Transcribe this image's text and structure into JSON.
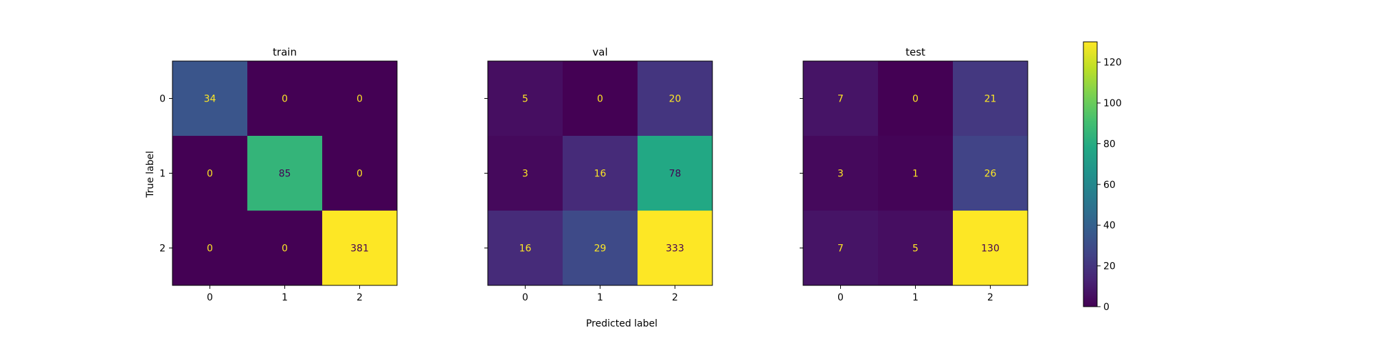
{
  "chart_data": {
    "type": "heatmap",
    "colormap": "viridis",
    "colorbar": {
      "range": [
        0,
        130
      ],
      "ticks": [
        "0",
        "20",
        "40",
        "60",
        "80",
        "100",
        "120"
      ]
    },
    "xlabel": "Predicted label",
    "ylabel": "True label",
    "class_labels": [
      "0",
      "1",
      "2"
    ],
    "panels": [
      {
        "title": "train",
        "matrix": [
          [
            34,
            0,
            0
          ],
          [
            0,
            85,
            0
          ],
          [
            0,
            0,
            381
          ]
        ]
      },
      {
        "title": "val",
        "matrix": [
          [
            5,
            0,
            20
          ],
          [
            3,
            16,
            78
          ],
          [
            16,
            29,
            333
          ]
        ]
      },
      {
        "title": "test",
        "matrix": [
          [
            7,
            0,
            21
          ],
          [
            3,
            1,
            26
          ],
          [
            7,
            5,
            130
          ]
        ]
      }
    ]
  },
  "colors": {
    "low_text": "#fde725",
    "high_text": "#440154",
    "frame": "#000000"
  }
}
